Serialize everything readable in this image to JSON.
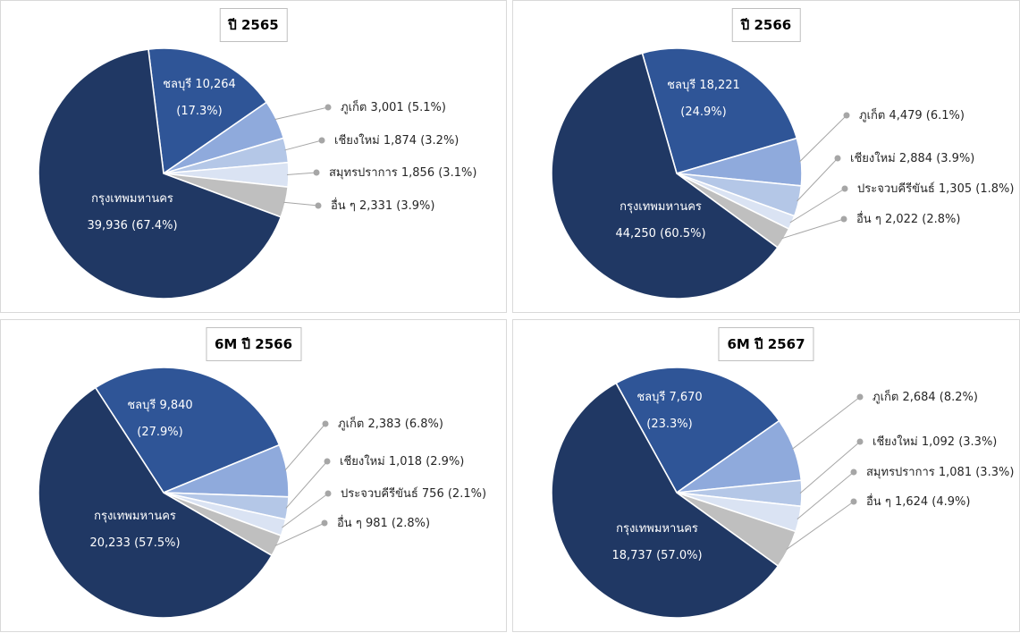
{
  "chart_data": [
    {
      "type": "pie",
      "title": "ปี 2565",
      "slices": [
        {
          "label": "ชลบุรี",
          "value": 10264,
          "value_text": "10,264",
          "pct_text": "(17.3%)",
          "color": "#2F5597"
        },
        {
          "label": "ภูเก็ต",
          "value": 3001,
          "value_text": "3,001",
          "pct_text": "(5.1%)",
          "color": "#8FAADC"
        },
        {
          "label": "เชียงใหม่",
          "value": 1874,
          "value_text": "1,874",
          "pct_text": "(3.2%)",
          "color": "#B4C7E7"
        },
        {
          "label": "สมุทรปราการ",
          "value": 1856,
          "value_text": "1,856",
          "pct_text": "(3.1%)",
          "color": "#DAE3F3"
        },
        {
          "label": "อื่น ๆ",
          "value": 2331,
          "value_text": "2,331",
          "pct_text": "(3.9%)",
          "color": "#BFBFBF"
        },
        {
          "label": "กรุงเทพมหานคร",
          "value": 39936,
          "value_text": "39,936",
          "pct_text": "(67.4%)",
          "color": "#203864"
        }
      ]
    },
    {
      "type": "pie",
      "title": "ปี 2566",
      "slices": [
        {
          "label": "ชลบุรี",
          "value": 18221,
          "value_text": "18,221",
          "pct_text": "(24.9%)",
          "color": "#2F5597"
        },
        {
          "label": "ภูเก็ต",
          "value": 4479,
          "value_text": "4,479",
          "pct_text": "(6.1%)",
          "color": "#8FAADC"
        },
        {
          "label": "เชียงใหม่",
          "value": 2884,
          "value_text": "2,884",
          "pct_text": "(3.9%)",
          "color": "#B4C7E7"
        },
        {
          "label": "ประจวบคีรีขันธ์",
          "value": 1305,
          "value_text": "1,305",
          "pct_text": "(1.8%)",
          "color": "#DAE3F3"
        },
        {
          "label": "อื่น ๆ",
          "value": 2022,
          "value_text": "2,022",
          "pct_text": "(2.8%)",
          "color": "#BFBFBF"
        },
        {
          "label": "กรุงเทพมหานคร",
          "value": 44250,
          "value_text": "44,250",
          "pct_text": "(60.5%)",
          "color": "#203864"
        }
      ]
    },
    {
      "type": "pie",
      "title": "6M ปี 2566",
      "slices": [
        {
          "label": "ชลบุรี",
          "value": 9840,
          "value_text": "9,840",
          "pct_text": "(27.9%)",
          "color": "#2F5597"
        },
        {
          "label": "ภูเก็ต",
          "value": 2383,
          "value_text": "2,383",
          "pct_text": "(6.8%)",
          "color": "#8FAADC"
        },
        {
          "label": "เชียงใหม่",
          "value": 1018,
          "value_text": "1,018",
          "pct_text": "(2.9%)",
          "color": "#B4C7E7"
        },
        {
          "label": "ประจวบคีรีขันธ์",
          "value": 756,
          "value_text": "756",
          "pct_text": "(2.1%)",
          "color": "#DAE3F3"
        },
        {
          "label": "อื่น ๆ",
          "value": 981,
          "value_text": "981",
          "pct_text": "(2.8%)",
          "color": "#BFBFBF"
        },
        {
          "label": "กรุงเทพมหานคร",
          "value": 20233,
          "value_text": "20,233",
          "pct_text": "(57.5%)",
          "color": "#203864"
        }
      ]
    },
    {
      "type": "pie",
      "title": "6M ปี 2567",
      "slices": [
        {
          "label": "ชลบุรี",
          "value": 7670,
          "value_text": "7,670",
          "pct_text": "(23.3%)",
          "color": "#2F5597"
        },
        {
          "label": "ภูเก็ต",
          "value": 2684,
          "value_text": "2,684",
          "pct_text": "(8.2%)",
          "color": "#8FAADC"
        },
        {
          "label": "เชียงใหม่",
          "value": 1092,
          "value_text": "1,092",
          "pct_text": "(3.3%)",
          "color": "#B4C7E7"
        },
        {
          "label": "สมุทรปราการ",
          "value": 1081,
          "value_text": "1,081",
          "pct_text": "(3.3%)",
          "color": "#DAE3F3"
        },
        {
          "label": "อื่น ๆ",
          "value": 1624,
          "value_text": "1,624",
          "pct_text": "(4.9%)",
          "color": "#BFBFBF"
        },
        {
          "label": "กรุงเทพมหานคร",
          "value": 18737,
          "value_text": "18,737",
          "pct_text": "(57.0%)",
          "color": "#203864"
        }
      ]
    }
  ]
}
